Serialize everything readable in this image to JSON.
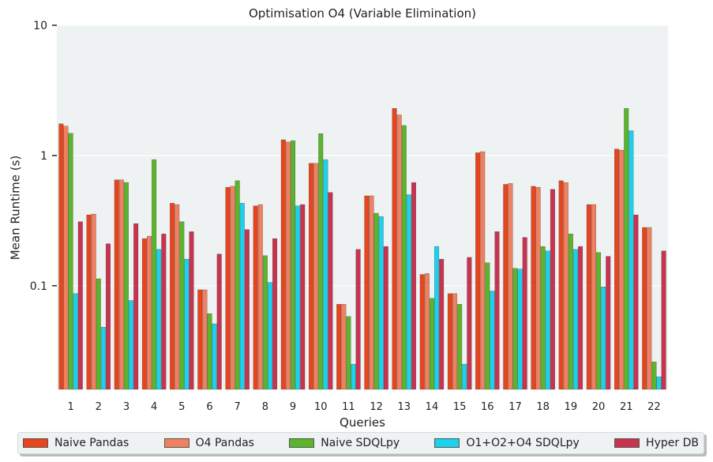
{
  "chart_data": {
    "type": "bar",
    "title": "Optimisation O4 (Variable Elimination)",
    "xlabel": "Queries",
    "ylabel": "Mean Runtime (s)",
    "yscale": "log",
    "ylim": [
      0.016,
      10
    ],
    "yticks": [
      {
        "value": 0.1,
        "label": "0.1"
      },
      {
        "value": 1,
        "label": "1"
      },
      {
        "value": 10,
        "label": "10"
      }
    ],
    "grid": true,
    "legend_position": "bottom",
    "categories": [
      "1",
      "2",
      "3",
      "4",
      "5",
      "6",
      "7",
      "8",
      "9",
      "10",
      "11",
      "12",
      "13",
      "14",
      "15",
      "16",
      "17",
      "18",
      "19",
      "20",
      "21",
      "22"
    ],
    "series": [
      {
        "name": "Naive Pandas",
        "color": "#e8441d",
        "values": [
          1.75,
          0.35,
          0.65,
          0.23,
          0.43,
          0.093,
          0.57,
          0.41,
          1.32,
          0.87,
          0.072,
          0.49,
          2.3,
          0.122,
          0.087,
          1.05,
          0.6,
          0.58,
          0.64,
          0.42,
          1.12,
          0.28
        ]
      },
      {
        "name": "O4 Pandas",
        "color": "#f08060",
        "values": [
          1.68,
          0.355,
          0.65,
          0.24,
          0.42,
          0.093,
          0.58,
          0.42,
          1.27,
          0.87,
          0.072,
          0.49,
          2.05,
          0.124,
          0.087,
          1.07,
          0.61,
          0.57,
          0.62,
          0.42,
          1.1,
          0.28
        ]
      },
      {
        "name": "Naive SDQLpy",
        "color": "#5bb52c",
        "values": [
          1.48,
          0.113,
          0.62,
          0.93,
          0.31,
          0.061,
          0.64,
          0.17,
          1.3,
          1.47,
          0.058,
          0.36,
          1.7,
          0.08,
          0.072,
          0.15,
          0.136,
          0.2,
          0.25,
          0.18,
          2.3,
          0.026
        ]
      },
      {
        "name": "O1+O2+O4 SDQLpy",
        "color": "#1ad2ee",
        "values": [
          0.087,
          0.048,
          0.077,
          0.19,
          0.16,
          0.051,
          0.43,
          0.106,
          0.41,
          0.93,
          0.025,
          0.34,
          0.5,
          0.2,
          0.025,
          0.091,
          0.134,
          0.185,
          0.19,
          0.098,
          1.55,
          0.02
        ]
      },
      {
        "name": "Hyper DB",
        "color": "#c93350",
        "values": [
          0.31,
          0.21,
          0.3,
          0.25,
          0.26,
          0.175,
          0.27,
          0.23,
          0.42,
          0.52,
          0.19,
          0.2,
          0.62,
          0.16,
          0.165,
          0.26,
          0.235,
          0.55,
          0.2,
          0.168,
          0.35,
          0.185
        ]
      }
    ]
  }
}
